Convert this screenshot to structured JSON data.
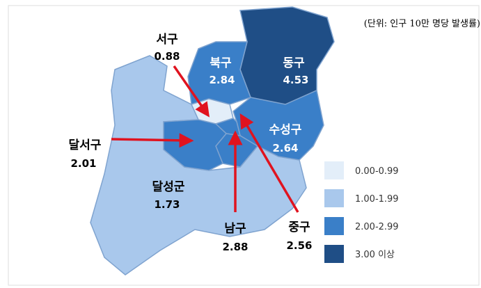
{
  "note": "(단위: 인구 10만 명당 발생률)",
  "regions": [
    {
      "name": "서구",
      "value": 0.88,
      "color": "#e3eef9"
    },
    {
      "name": "북구",
      "value": 2.84,
      "color": "#3a7fc8"
    },
    {
      "name": "동구",
      "value": 4.53,
      "color": "#1f4e86"
    },
    {
      "name": "수성구",
      "value": 2.64,
      "color": "#3a7fc8"
    },
    {
      "name": "달서구",
      "value": 2.01,
      "color": "#3a7fc8"
    },
    {
      "name": "달성군",
      "value": 1.73,
      "color": "#a9c8ec"
    },
    {
      "name": "남구",
      "value": 2.88,
      "color": "#3a7fc8"
    },
    {
      "name": "중구",
      "value": 2.56,
      "color": "#3a7fc8"
    }
  ],
  "legend": [
    {
      "label": "0.00-0.99",
      "color": "#e3eef9"
    },
    {
      "label": "1.00-1.99",
      "color": "#a9c8ec"
    },
    {
      "label": "2.00-2.99",
      "color": "#3a7fc8"
    },
    {
      "label": "3.00 이상",
      "color": "#1f4e86"
    }
  ]
}
